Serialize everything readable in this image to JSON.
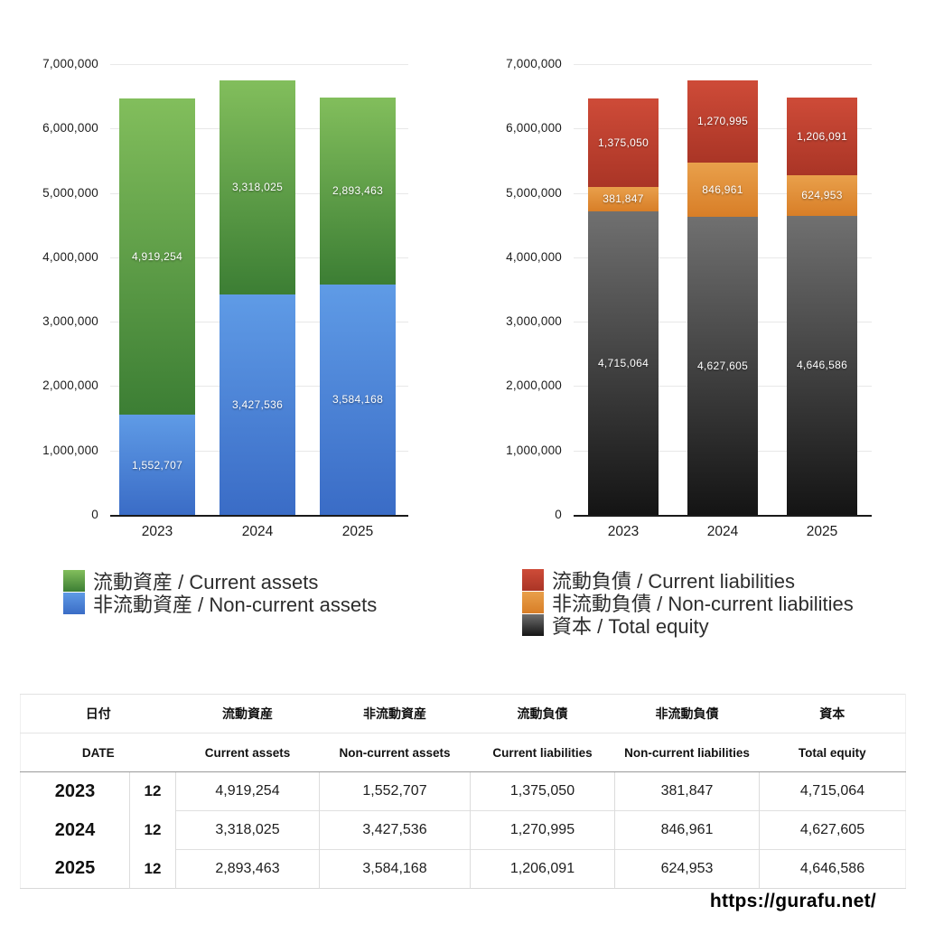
{
  "chart_data": [
    {
      "type": "stacked-bar",
      "title": "",
      "categories": [
        "2023",
        "2024",
        "2025"
      ],
      "y_ticks": [
        "7,000,000",
        "6,000,000",
        "5,000,000",
        "4,000,000",
        "3,000,000",
        "2,000,000",
        "1,000,000",
        "0"
      ],
      "y_max": 7000000,
      "ylim": [
        0,
        7000000
      ],
      "grid": "horizontal",
      "legend_position": "bottom-left",
      "series": [
        {
          "name": "流動資産 / Current assets",
          "color_top": "#82BE5C",
          "color_bottom": "#3C7E34",
          "values": [
            4919254,
            3318025,
            2893463
          ],
          "labels": [
            "4,919,254",
            "3,318,025",
            "2,893,463"
          ]
        },
        {
          "name": "非流動資産 / Non-current assets",
          "color_top": "#5F9BE6",
          "color_bottom": "#3A6CC6",
          "values": [
            1552707,
            3427536,
            3584168
          ],
          "labels": [
            "1,552,707",
            "3,427,536",
            "3,584,168"
          ]
        }
      ]
    },
    {
      "type": "stacked-bar",
      "title": "",
      "categories": [
        "2023",
        "2024",
        "2025"
      ],
      "y_ticks": [
        "7,000,000",
        "6,000,000",
        "5,000,000",
        "4,000,000",
        "3,000,000",
        "2,000,000",
        "1,000,000",
        "0"
      ],
      "y_max": 7000000,
      "ylim": [
        0,
        7000000
      ],
      "grid": "horizontal",
      "legend_position": "bottom-left",
      "series": [
        {
          "name": "流動負債 / Current liabilities",
          "color_top": "#CE4B38",
          "color_bottom": "#AA3526",
          "values": [
            1375050,
            1270995,
            1206091
          ],
          "labels": [
            "1,375,050",
            "1,270,995",
            "1,206,091"
          ]
        },
        {
          "name": "非流動負債 / Non-current liabilities",
          "color_top": "#E9A04B",
          "color_bottom": "#D87E27",
          "values": [
            381847,
            846961,
            624953
          ],
          "labels": [
            "381,847",
            "846,961",
            "624,953"
          ]
        },
        {
          "name": "資本 / Total equity",
          "color_top": "#707070",
          "color_bottom": "#141414",
          "values": [
            4715064,
            4627605,
            4646586
          ],
          "labels": [
            "4,715,064",
            "4,627,605",
            "4,646,586"
          ]
        }
      ]
    }
  ],
  "table": {
    "headers_jp": [
      "日付",
      "流動資産",
      "非流動資産",
      "流動負債",
      "非流動負債",
      "資本"
    ],
    "headers_en": [
      "DATE",
      "Current assets",
      "Non-current assets",
      "Current liabilities",
      "Non-current liabilities",
      "Total equity"
    ],
    "rows": [
      {
        "year": "2023",
        "month": "12",
        "values": [
          "4,919,254",
          "1,552,707",
          "1,375,050",
          "381,847",
          "4,715,064"
        ]
      },
      {
        "year": "2024",
        "month": "12",
        "values": [
          "3,318,025",
          "3,427,536",
          "1,270,995",
          "846,961",
          "4,627,605"
        ]
      },
      {
        "year": "2025",
        "month": "12",
        "values": [
          "2,893,463",
          "3,584,168",
          "1,206,091",
          "624,953",
          "4,646,586"
        ]
      }
    ]
  },
  "footer": {
    "url": "https://gurafu.net/"
  }
}
